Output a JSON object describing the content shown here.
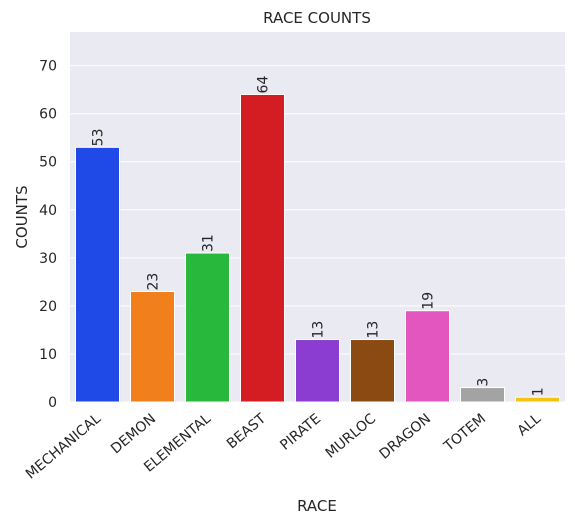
{
  "chart_data": {
    "type": "bar",
    "title": "RACE COUNTS",
    "xlabel": "RACE",
    "ylabel": "COUNTS",
    "categories": [
      "MECHANICAL",
      "DEMON",
      "ELEMENTAL",
      "BEAST",
      "PIRATE",
      "MURLOC",
      "DRAGON",
      "TOTEM",
      "ALL"
    ],
    "values": [
      53,
      23,
      31,
      64,
      13,
      13,
      19,
      3,
      1
    ],
    "colors": [
      "#1f4ae8",
      "#f07f1c",
      "#27b83c",
      "#d41c23",
      "#8a3dd0",
      "#8b4a12",
      "#e456bf",
      "#a3a3a3",
      "#f2c310"
    ],
    "ylim": [
      0,
      77
    ],
    "yticks": [
      0,
      10,
      20,
      30,
      40,
      50,
      60,
      70
    ],
    "grid": true,
    "background": "#eaeaf2",
    "data_labels": true
  }
}
